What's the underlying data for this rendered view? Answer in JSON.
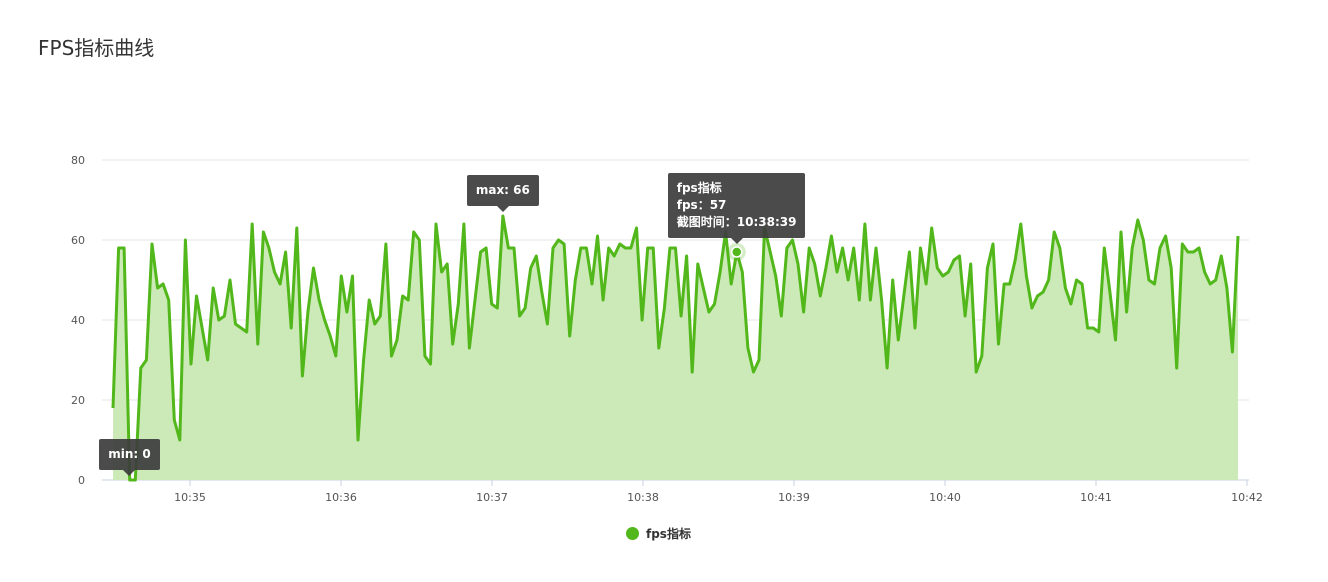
{
  "title": "FPS指标曲线",
  "chart_data": {
    "type": "area",
    "title": "FPS指标曲线",
    "xlabel": "",
    "ylabel": "",
    "ylim": [
      0,
      80
    ],
    "y_ticks": [
      0,
      20,
      40,
      60,
      80
    ],
    "x_ticks": [
      "10:35",
      "10:36",
      "10:37",
      "10:38",
      "10:39",
      "10:40",
      "10:41",
      "10:42"
    ],
    "x_range_minutes": [
      34.47,
      42.0
    ],
    "grid": true,
    "legend_position": "bottom-center",
    "series": [
      {
        "name": "fps指标",
        "color": "#52b71a",
        "fill_color": "#cbeab7",
        "values": [
          18,
          58,
          58,
          0,
          0,
          28,
          30,
          59,
          48,
          49,
          45,
          15,
          10,
          60,
          29,
          46,
          38,
          30,
          48,
          40,
          41,
          50,
          39,
          38,
          37,
          64,
          34,
          62,
          58,
          52,
          49,
          57,
          38,
          63,
          26,
          42,
          53,
          45,
          40,
          36,
          31,
          51,
          42,
          51,
          10,
          30,
          45,
          39,
          41,
          59,
          31,
          35,
          46,
          45,
          62,
          60,
          31,
          29,
          64,
          52,
          54,
          34,
          44,
          64,
          33,
          45,
          57,
          58,
          44,
          43,
          66,
          58,
          58,
          41,
          43,
          53,
          56,
          47,
          39,
          58,
          60,
          59,
          36,
          50,
          58,
          58,
          49,
          61,
          45,
          58,
          56,
          59,
          58,
          58,
          63,
          40,
          58,
          58,
          33,
          43,
          58,
          58,
          41,
          56,
          27,
          54,
          48,
          42,
          44,
          52,
          62,
          49,
          57,
          52,
          33,
          27,
          30,
          63,
          57,
          51,
          41,
          58,
          60,
          54,
          42,
          58,
          54,
          46,
          53,
          61,
          52,
          58,
          50,
          58,
          45,
          64,
          45,
          58,
          45,
          28,
          50,
          35,
          46,
          57,
          38,
          58,
          49,
          63,
          53,
          51,
          52,
          55,
          56,
          41,
          54,
          27,
          31,
          53,
          59,
          34,
          49,
          49,
          55,
          64,
          51,
          43,
          46,
          47,
          50,
          62,
          58,
          48,
          44,
          50,
          49,
          38,
          38,
          37,
          58,
          47,
          35,
          62,
          42,
          58,
          65,
          60,
          50,
          49,
          58,
          61,
          53,
          28,
          59,
          57,
          57,
          58,
          52,
          49,
          50,
          56,
          48,
          32,
          61
        ]
      }
    ],
    "annotations": {
      "max_label": "max: 66",
      "min_label": "min: 0",
      "tooltip": {
        "line1": "fps指标",
        "line2": "fps：57",
        "line3": "截图时间：10:38:39"
      }
    }
  }
}
